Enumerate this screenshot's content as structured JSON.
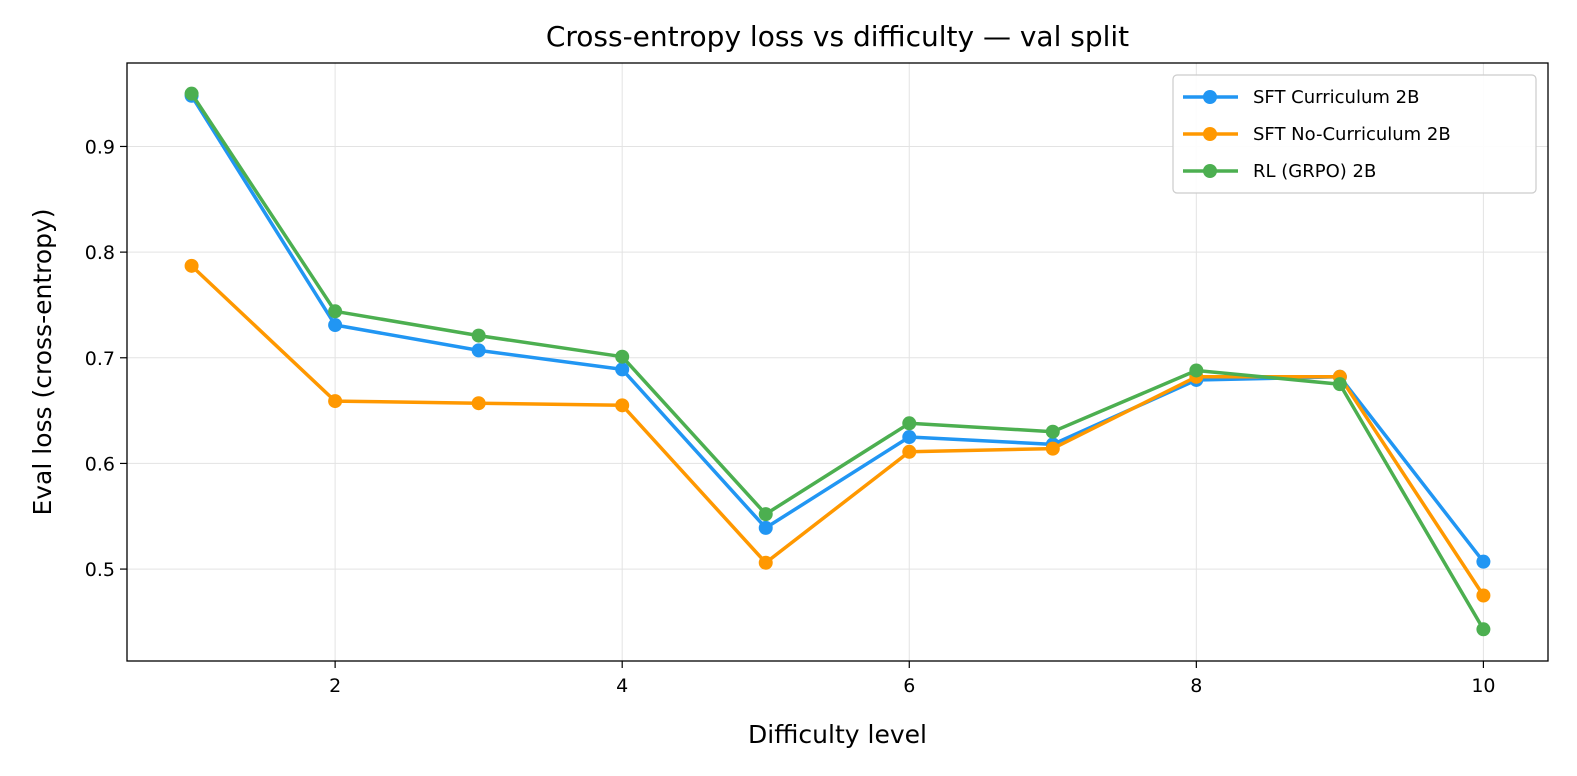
{
  "chart_data": {
    "type": "line",
    "title": "Cross-entropy loss vs difficulty — val split",
    "xlabel": "Difficulty level",
    "ylabel": "Eval loss (cross-entropy)",
    "x": [
      1,
      2,
      3,
      4,
      5,
      6,
      7,
      8,
      9,
      10
    ],
    "xlim": [
      0.55,
      10.45
    ],
    "ylim": [
      0.413,
      0.979
    ],
    "xticks": [
      2,
      4,
      6,
      8,
      10
    ],
    "yticks": [
      0.5,
      0.6,
      0.7,
      0.8,
      0.9
    ],
    "grid": true,
    "legend_position": "top-right",
    "series": [
      {
        "name": "SFT Curriculum 2B",
        "color": "#2196F3",
        "values": [
          0.948,
          0.731,
          0.707,
          0.689,
          0.539,
          0.625,
          0.618,
          0.679,
          0.682,
          0.507
        ]
      },
      {
        "name": "SFT No-Curriculum 2B",
        "color": "#FF9800",
        "values": [
          0.787,
          0.659,
          0.657,
          0.655,
          0.506,
          0.611,
          0.614,
          0.682,
          0.682,
          0.475
        ]
      },
      {
        "name": "RL (GRPO) 2B",
        "color": "#4CAF50",
        "values": [
          0.95,
          0.744,
          0.721,
          0.701,
          0.552,
          0.638,
          0.63,
          0.688,
          0.675,
          0.443
        ]
      }
    ]
  }
}
